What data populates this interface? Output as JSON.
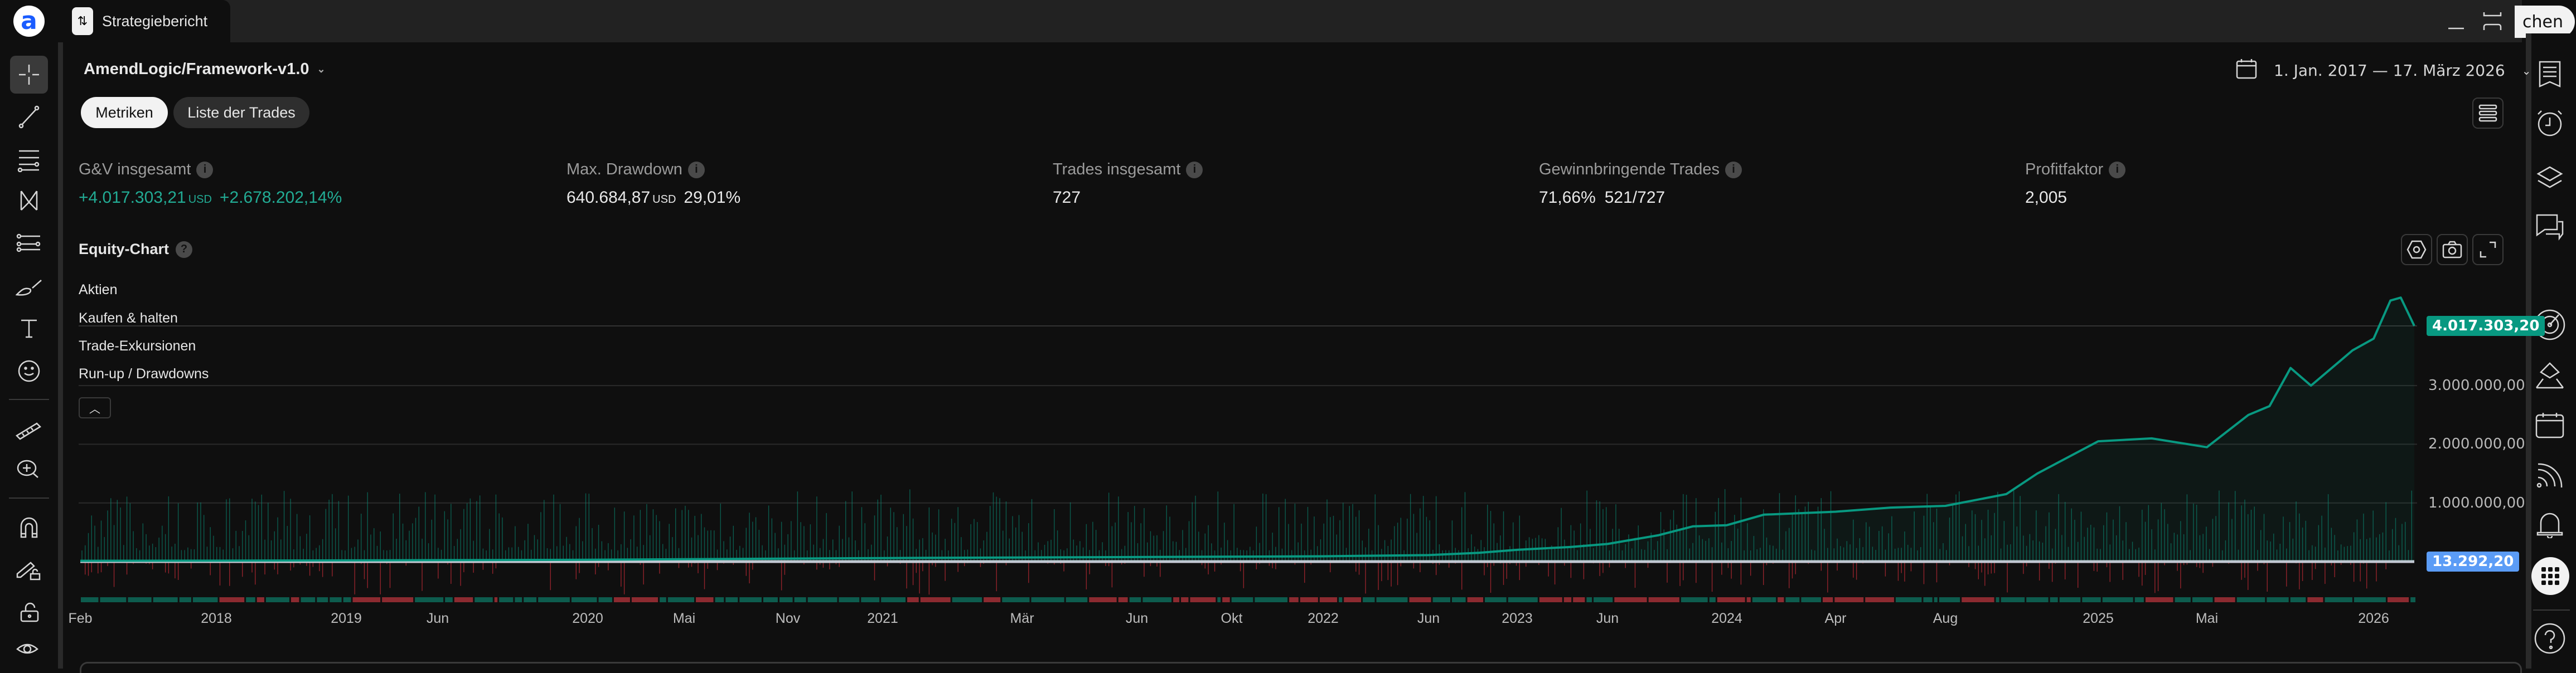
{
  "app": {
    "tab_title": "Strategiebericht",
    "search_label": "chen"
  },
  "strategy": {
    "name": "AmendLogic/Framework-v1.0"
  },
  "tabs": [
    {
      "label": "Metriken",
      "active": true
    },
    {
      "label": "Liste der Trades",
      "active": false
    }
  ],
  "date_range": "1. Jan. 2017 — 17. März 2026",
  "metrics": [
    {
      "label": "G&V insgesamt",
      "value": "+4.017.303,21",
      "unit": "USD",
      "extra": "+2.678.202,14%",
      "color": "#22ab94"
    },
    {
      "label": "Max. Drawdown",
      "value": "640.684,87",
      "unit": "USD",
      "extra": "29,01%",
      "color": "#e8e8e8"
    },
    {
      "label": "Trades insgesamt",
      "value": "727",
      "unit": "",
      "extra": "",
      "color": "#e8e8e8"
    },
    {
      "label": "Gewinnbringende Trades",
      "value": "71,66%",
      "unit": "",
      "extra": "521/727",
      "color": "#e8e8e8"
    },
    {
      "label": "Profitfaktor",
      "value": "2,005",
      "unit": "",
      "extra": "",
      "color": "#e8e8e8"
    }
  ],
  "equity_chart": {
    "title": "Equity-Chart",
    "legend": [
      "Aktien",
      "Kaufen & halten",
      "Trade-Exkursionen",
      "Run-up / Drawdowns"
    ]
  },
  "colors": {
    "equity": "#089981",
    "buyhold": "#5b9cf6",
    "positive": "#089981",
    "negative": "#b22833"
  },
  "chart_data": {
    "type": "line",
    "title": "Equity-Chart",
    "y_ticks": [
      "1.000.000,00",
      "2.000.000,00",
      "3.000.000,00"
    ],
    "y_tick_values": [
      1000000,
      2000000,
      3000000
    ],
    "ylim": [
      0,
      4600000
    ],
    "last_equity_label": "4.017.303,20",
    "buyhold_label": "13.292,20",
    "x_ticks": [
      {
        "label": "Feb",
        "date": "2017-02-01"
      },
      {
        "label": "2018",
        "date": "2018-01-01"
      },
      {
        "label": "2019",
        "date": "2019-01-01"
      },
      {
        "label": "Jun",
        "date": "2019-06-01"
      },
      {
        "label": "2020",
        "date": "2020-01-01"
      },
      {
        "label": "Mai",
        "date": "2020-05-01"
      },
      {
        "label": "Nov",
        "date": "2020-11-01"
      },
      {
        "label": "2021",
        "date": "2021-01-01"
      },
      {
        "label": "Mär",
        "date": "2021-03-01"
      },
      {
        "label": "Jun",
        "date": "2021-06-01"
      },
      {
        "label": "Okt",
        "date": "2021-10-01"
      },
      {
        "label": "2022",
        "date": "2022-01-01"
      },
      {
        "label": "Jun",
        "date": "2022-06-01"
      },
      {
        "label": "2023",
        "date": "2023-01-01"
      },
      {
        "label": "Jun",
        "date": "2023-06-01"
      },
      {
        "label": "2024",
        "date": "2024-01-01"
      },
      {
        "label": "Apr",
        "date": "2024-04-01"
      },
      {
        "label": "Aug",
        "date": "2024-08-01"
      },
      {
        "label": "2025",
        "date": "2025-01-01"
      },
      {
        "label": "Mai",
        "date": "2025-05-01"
      },
      {
        "label": "2026",
        "date": "2026-01-01"
      }
    ],
    "series": [
      {
        "key": "equity",
        "points": [
          [
            "2017-02-01",
            13292
          ],
          [
            "2018-01-01",
            15000
          ],
          [
            "2019-01-01",
            20000
          ],
          [
            "2020-01-01",
            30000
          ],
          [
            "2020-05-01",
            40000
          ],
          [
            "2021-01-01",
            60000
          ],
          [
            "2022-01-01",
            90000
          ],
          [
            "2022-06-01",
            110000
          ],
          [
            "2022-10-01",
            150000
          ],
          [
            "2023-01-01",
            200000
          ],
          [
            "2023-04-01",
            250000
          ],
          [
            "2023-06-01",
            300000
          ],
          [
            "2023-09-01",
            450000
          ],
          [
            "2023-11-01",
            600000
          ],
          [
            "2024-01-01",
            620000
          ],
          [
            "2024-02-01",
            800000
          ],
          [
            "2024-04-01",
            850000
          ],
          [
            "2024-06-01",
            920000
          ],
          [
            "2024-08-01",
            950000
          ],
          [
            "2024-10-01",
            1150000
          ],
          [
            "2024-11-01",
            1500000
          ],
          [
            "2025-01-01",
            2050000
          ],
          [
            "2025-03-01",
            2100000
          ],
          [
            "2025-05-01",
            1950000
          ],
          [
            "2025-07-01",
            2500000
          ],
          [
            "2025-08-01",
            2650000
          ],
          [
            "2025-09-01",
            3300000
          ],
          [
            "2025-10-01",
            3000000
          ],
          [
            "2025-12-01",
            3600000
          ],
          [
            "2026-01-01",
            3800000
          ],
          [
            "2026-02-01",
            4450000
          ],
          [
            "2026-02-20",
            4500000
          ],
          [
            "2026-03-05",
            4250000
          ],
          [
            "2026-03-17",
            4017303
          ]
        ]
      },
      {
        "key": "buyhold",
        "points": [
          [
            "2017-02-01",
            10000
          ],
          [
            "2026-03-17",
            13292
          ]
        ]
      }
    ],
    "trade_count": 727,
    "winning_trades": 521
  }
}
